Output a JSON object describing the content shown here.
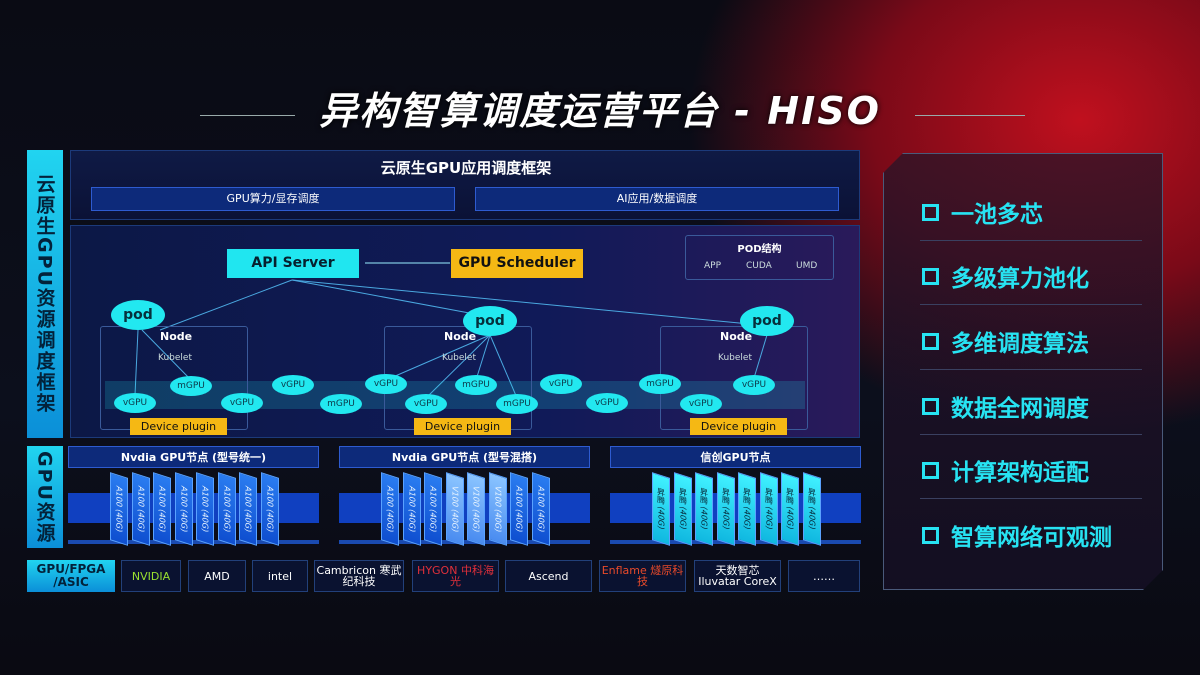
{
  "title": "异构智算调度运营平台 - HISO",
  "side_labels": {
    "top": "云原生GPU资源调度框架",
    "bottom": "GPU资源",
    "chips": "GPU/FPGA /ASIC"
  },
  "framework": {
    "title": "云原生GPU应用调度框架",
    "bars": [
      "GPU算力/显存调度",
      "AI应用/数据调度"
    ]
  },
  "api_server": "API Server",
  "gpu_scheduler": "GPU Scheduler",
  "pod_structure": {
    "title": "POD结构",
    "items": [
      "APP",
      "CUDA",
      "UMD"
    ]
  },
  "pod_label": "pod",
  "node_label": "Node",
  "kubelet_label": "Kubelet",
  "device_plugin": "Device plugin",
  "virtual_gpus": [
    "vGPU",
    "mGPU",
    "vGPU",
    "vGPU",
    "mGPU",
    "vGPU",
    "vGPU",
    "mGPU",
    "mGPU",
    "vGPU",
    "vGPU",
    "mGPU",
    "vGPU",
    "vGPU"
  ],
  "gpu_groups": [
    {
      "title": "Nvdia GPU节点 (型号统一)",
      "cards": [
        "A100 (40G)",
        "A100 (40G)",
        "A100 (40G)",
        "A100 (40G)",
        "A100 (40G)",
        "A100 (40G)",
        "A100 (40G)",
        "A100 (40G)"
      ]
    },
    {
      "title": "Nvdia GPU节点 (型号混搭)",
      "cards": [
        "A100 (40G)",
        "A100 (40G)",
        "A100 (40G)",
        "V100 (40G)",
        "V100 (40G)",
        "V100 (40G)",
        "A100 (40G)",
        "A100 (40G)"
      ]
    },
    {
      "title": "信创GPU节点",
      "cards": [
        "昇腾 (40G)",
        "昇腾 (40G)",
        "昇腾 (40G)",
        "昇腾 (40G)",
        "昇腾 (40G)",
        "昇腾 (40G)",
        "昇腾 (40G)",
        "昇腾 (40G)"
      ]
    }
  ],
  "vendors": [
    "NVIDIA",
    "AMD",
    "intel",
    "Cambricon 寒武纪科技",
    "HYGON 中科海光",
    "Ascend",
    "Enflame 燧原科技",
    "天数智芯 Iluvatar CoreX",
    "……"
  ],
  "features": [
    "一池多芯",
    "多级算力池化",
    "多维调度算法",
    "数据全网调度",
    "计算架构适配",
    "智算网络可观测"
  ],
  "colors": {
    "accent_cyan": "#22e8f0",
    "accent_yellow": "#f5b814",
    "gpu_blue": "#0f4fd0"
  }
}
